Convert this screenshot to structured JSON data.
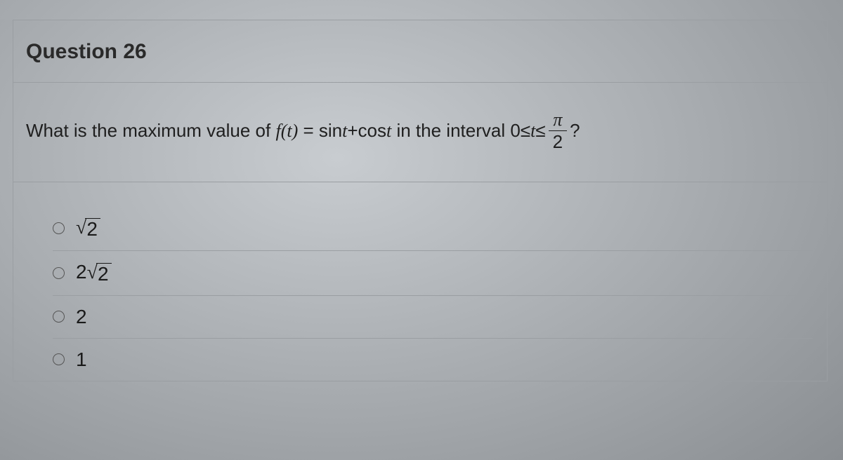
{
  "header": {
    "title": "Question 26"
  },
  "stem": {
    "prefix": "What is the maximum value of ",
    "func_lhs": "f(t)",
    "eq": " = ",
    "rhs_a": "sin",
    "rhs_var": " t ",
    "plus": "+ ",
    "rhs_b": "cos",
    "rhs_var2": " t",
    "mid": " in the interval ",
    "zero": "0",
    "le1": " ≤ ",
    "tvar": "t",
    "le2": " ≤ ",
    "frac_num": "π",
    "frac_den": "2",
    "qmark": "?"
  },
  "options": [
    {
      "type": "sqrt",
      "pre": "",
      "radicand": "2"
    },
    {
      "type": "sqrt",
      "pre": "2",
      "radicand": "2"
    },
    {
      "type": "plain",
      "label": "2"
    },
    {
      "type": "plain",
      "label": "1"
    }
  ],
  "styling": {
    "card_border": "#9a9ea2",
    "title_fontsize": 30,
    "stem_fontsize": 26,
    "option_fontsize": 28,
    "radio_border": "#555"
  }
}
